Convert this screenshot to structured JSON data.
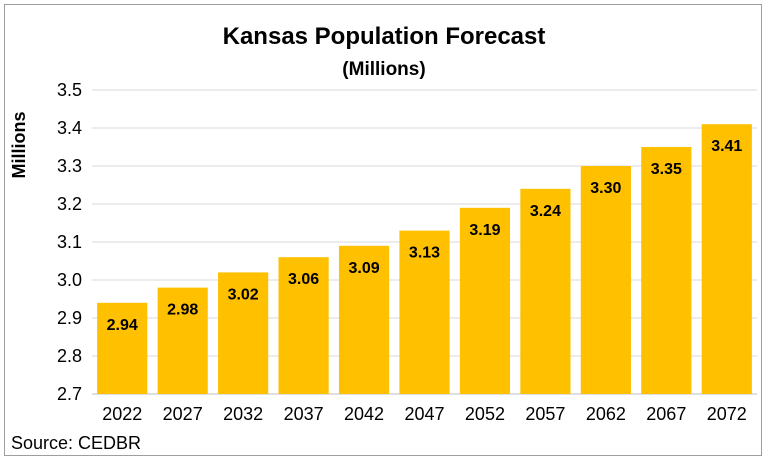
{
  "chart_data": {
    "type": "bar",
    "title": "Kansas Population Forecast",
    "subtitle": "(Millions)",
    "ylabel": "Millions",
    "xlabel": "",
    "categories": [
      "2022",
      "2027",
      "2032",
      "2037",
      "2042",
      "2047",
      "2052",
      "2057",
      "2062",
      "2067",
      "2072"
    ],
    "values": [
      2.94,
      2.98,
      3.02,
      3.06,
      3.09,
      3.13,
      3.19,
      3.24,
      3.3,
      3.35,
      3.41
    ],
    "data_labels": [
      "2.94",
      "2.98",
      "3.02",
      "3.06",
      "3.09",
      "3.13",
      "3.19",
      "3.24",
      "3.30",
      "3.35",
      "3.41"
    ],
    "ylim": [
      2.7,
      3.5
    ],
    "yticks": [
      "2.7",
      "2.8",
      "2.9",
      "3.0",
      "3.1",
      "3.2",
      "3.3",
      "3.4",
      "3.5"
    ],
    "grid": true,
    "legend": "none",
    "bar_color": "#FFC000",
    "grid_color": "#D9D9D9",
    "source": "Source: CEDBR"
  }
}
